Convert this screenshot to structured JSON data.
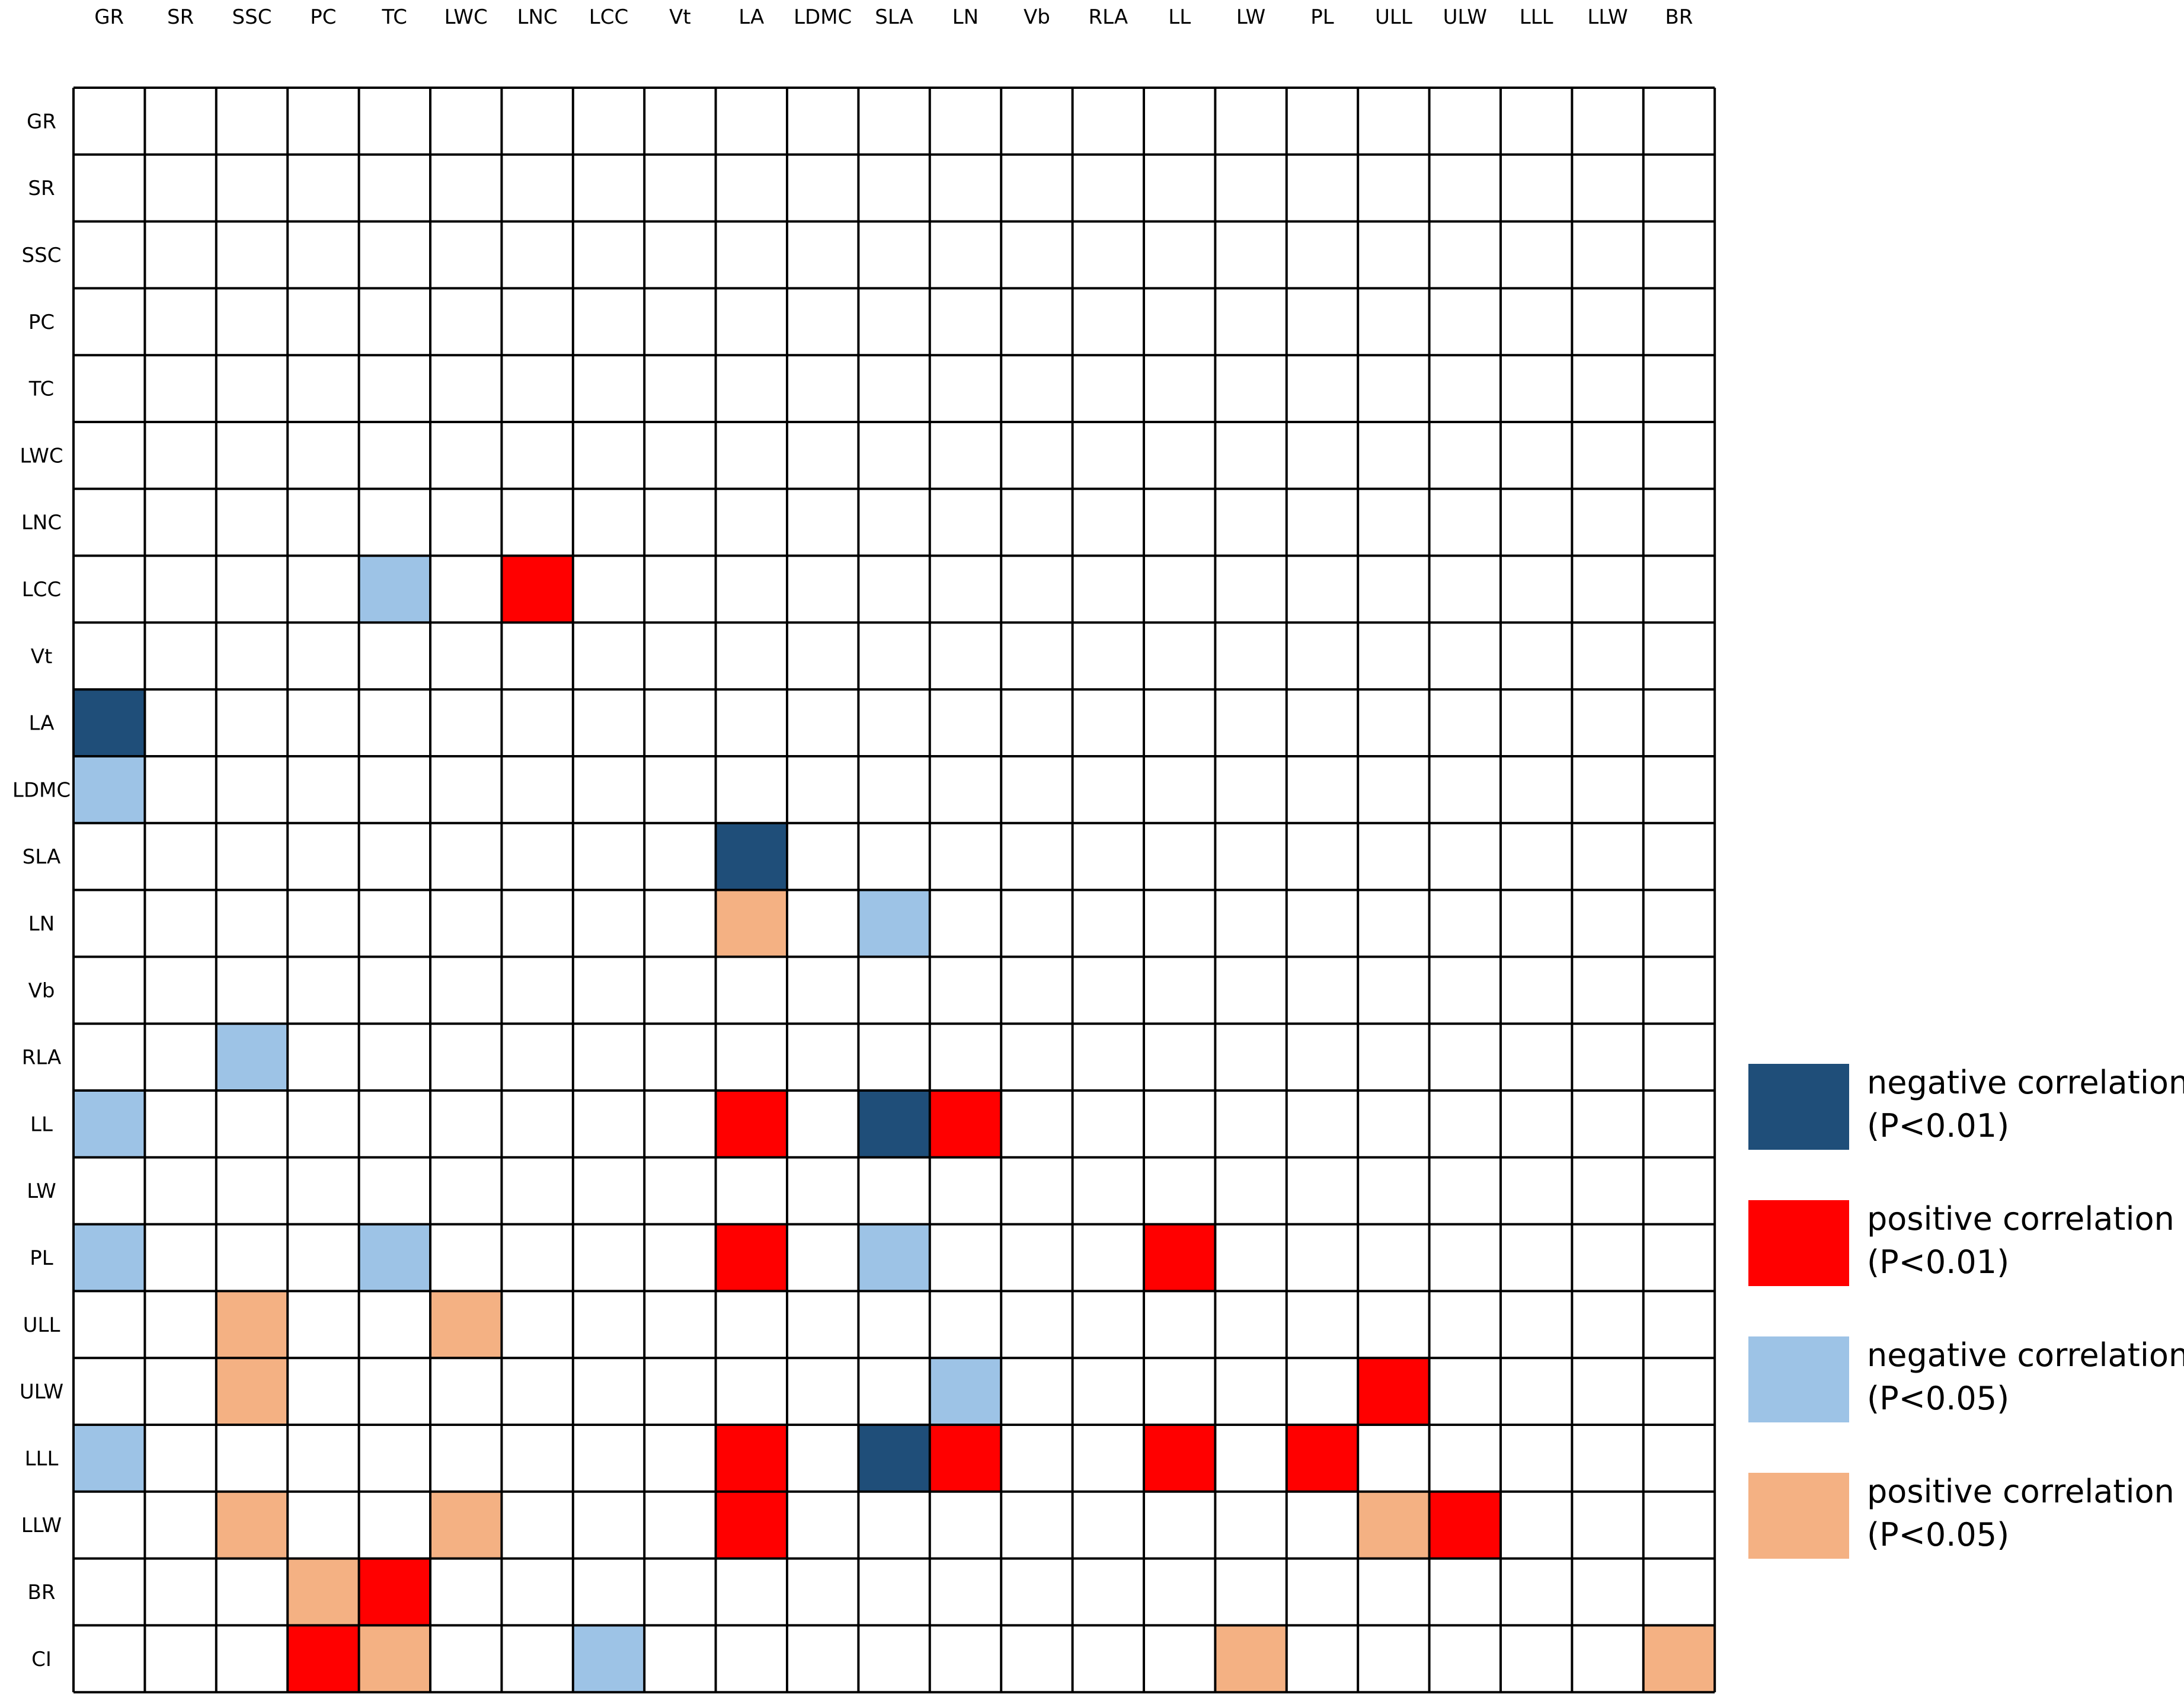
{
  "chart_data": {
    "type": "heatmap",
    "title": "",
    "xlabel": "",
    "ylabel": "",
    "x_labels": [
      "GR",
      "SR",
      "SSC",
      "PC",
      "TC",
      "LWC",
      "LNC",
      "LCC",
      "Vt",
      "LA",
      "LDMC",
      "SLA",
      "LN",
      "Vb",
      "RLA",
      "LL",
      "LW",
      "PL",
      "ULL",
      "ULW",
      "LLL",
      "LLW",
      "BR"
    ],
    "y_labels": [
      "GR",
      "SR",
      "SSC",
      "PC",
      "TC",
      "LWC",
      "LNC",
      "LCC",
      "Vt",
      "LA",
      "LDMC",
      "SLA",
      "LN",
      "Vb",
      "RLA",
      "LL",
      "LW",
      "PL",
      "ULL",
      "ULW",
      "LLL",
      "LLW",
      "BR",
      "CI"
    ],
    "categories": {
      "neg01": {
        "label_main": "negative correlation",
        "label_p": "(P<0.01)",
        "color": "#1f4e79"
      },
      "pos01": {
        "label_main": "positive correlation",
        "label_p": "(P<0.01)",
        "color": "#ff0000"
      },
      "neg05": {
        "label_main": "negative correlation",
        "label_p": "(P<0.05)",
        "color": "#9dc3e6"
      },
      "pos05": {
        "label_main": "positive correlation",
        "label_p": "(P<0.05)",
        "color": "#f4b183"
      }
    },
    "legend_order": [
      "neg01",
      "pos01",
      "neg05",
      "pos05"
    ],
    "legend_position": "right",
    "grid": true,
    "cells": [
      {
        "row": "LCC",
        "col": "TC",
        "cat": "neg05"
      },
      {
        "row": "LCC",
        "col": "LNC",
        "cat": "pos01"
      },
      {
        "row": "LA",
        "col": "GR",
        "cat": "neg01"
      },
      {
        "row": "LDMC",
        "col": "GR",
        "cat": "neg05"
      },
      {
        "row": "SLA",
        "col": "LA",
        "cat": "neg01"
      },
      {
        "row": "LN",
        "col": "LA",
        "cat": "pos05"
      },
      {
        "row": "LN",
        "col": "SLA",
        "cat": "neg05"
      },
      {
        "row": "RLA",
        "col": "SSC",
        "cat": "neg05"
      },
      {
        "row": "LL",
        "col": "GR",
        "cat": "neg05"
      },
      {
        "row": "LL",
        "col": "LA",
        "cat": "pos01"
      },
      {
        "row": "LL",
        "col": "SLA",
        "cat": "neg01"
      },
      {
        "row": "LL",
        "col": "LN",
        "cat": "pos01"
      },
      {
        "row": "PL",
        "col": "GR",
        "cat": "neg05"
      },
      {
        "row": "PL",
        "col": "TC",
        "cat": "neg05"
      },
      {
        "row": "PL",
        "col": "LA",
        "cat": "pos01"
      },
      {
        "row": "PL",
        "col": "SLA",
        "cat": "neg05"
      },
      {
        "row": "PL",
        "col": "LL",
        "cat": "pos01"
      },
      {
        "row": "ULL",
        "col": "SSC",
        "cat": "pos05"
      },
      {
        "row": "ULL",
        "col": "LWC",
        "cat": "pos05"
      },
      {
        "row": "ULW",
        "col": "SSC",
        "cat": "pos05"
      },
      {
        "row": "ULW",
        "col": "LN",
        "cat": "neg05"
      },
      {
        "row": "ULW",
        "col": "ULL",
        "cat": "pos01"
      },
      {
        "row": "LLL",
        "col": "GR",
        "cat": "neg05"
      },
      {
        "row": "LLL",
        "col": "LA",
        "cat": "pos01"
      },
      {
        "row": "LLL",
        "col": "SLA",
        "cat": "neg01"
      },
      {
        "row": "LLL",
        "col": "LN",
        "cat": "pos01"
      },
      {
        "row": "LLL",
        "col": "LL",
        "cat": "pos01"
      },
      {
        "row": "LLL",
        "col": "PL",
        "cat": "pos01"
      },
      {
        "row": "LLW",
        "col": "SSC",
        "cat": "pos05"
      },
      {
        "row": "LLW",
        "col": "LWC",
        "cat": "pos05"
      },
      {
        "row": "LLW",
        "col": "LA",
        "cat": "pos01"
      },
      {
        "row": "LLW",
        "col": "ULL",
        "cat": "pos05"
      },
      {
        "row": "LLW",
        "col": "ULW",
        "cat": "pos01"
      },
      {
        "row": "BR",
        "col": "PC",
        "cat": "pos05"
      },
      {
        "row": "BR",
        "col": "TC",
        "cat": "pos01"
      },
      {
        "row": "CI",
        "col": "PC",
        "cat": "pos01"
      },
      {
        "row": "CI",
        "col": "TC",
        "cat": "pos05"
      },
      {
        "row": "CI",
        "col": "LCC",
        "cat": "neg05"
      },
      {
        "row": "CI",
        "col": "LW",
        "cat": "pos05"
      },
      {
        "row": "CI",
        "col": "BR",
        "cat": "pos05"
      }
    ]
  }
}
